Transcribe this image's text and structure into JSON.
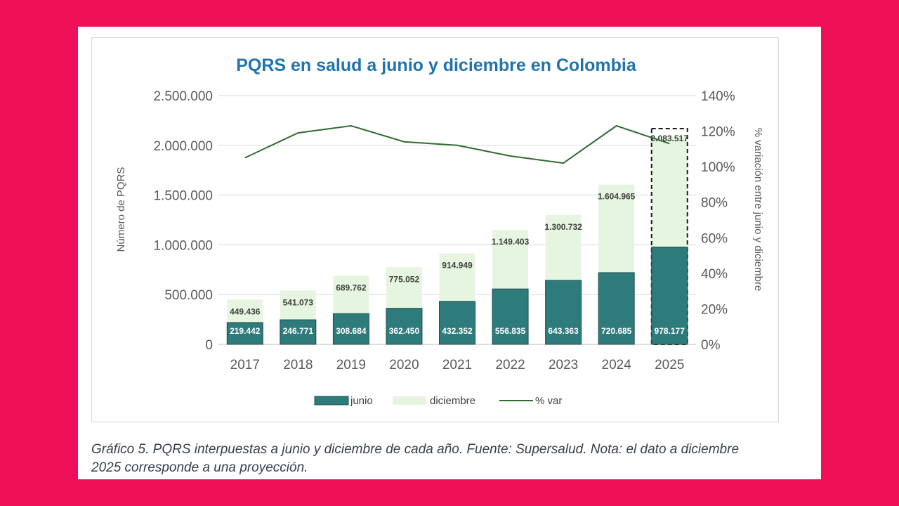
{
  "chart_data": {
    "type": "bar",
    "title": "PQRS en salud a junio y diciembre en Colombia",
    "ylabel": "Número de PQRS",
    "y2label": "% variación entre junio y diciembre",
    "categories": [
      "2017",
      "2018",
      "2019",
      "2020",
      "2021",
      "2022",
      "2023",
      "2024",
      "2025"
    ],
    "series": [
      {
        "name": "junio",
        "color": "#2e7b7c",
        "values": [
          219442,
          246771,
          308684,
          362450,
          432352,
          556835,
          643363,
          720685,
          978177
        ],
        "labels": [
          "219.442",
          "246.771",
          "308.684",
          "362.450",
          "432.352",
          "556.835",
          "643.363",
          "720.685",
          "978.177"
        ]
      },
      {
        "name": "diciembre",
        "color": "#e6f5df",
        "values": [
          449436,
          541073,
          689762,
          775052,
          914949,
          1149403,
          1300732,
          1604965,
          2083517
        ],
        "labels": [
          "449.436",
          "541.073",
          "689.762",
          "775.052",
          "914.949",
          "1.149.403",
          "1.300.732",
          "1.604.965",
          "2.083.517"
        ]
      },
      {
        "name": "% var",
        "color": "#2f6b2f",
        "axis": "right",
        "values": [
          105,
          119,
          123,
          114,
          112,
          106,
          102,
          123,
          113
        ]
      }
    ],
    "ylim": [
      0,
      2500000
    ],
    "yticks": [
      0,
      500000,
      1000000,
      1500000,
      2000000,
      2500000
    ],
    "ytick_labels": [
      "0",
      "500.000",
      "1.000.000",
      "1.500.000",
      "2.000.000",
      "2.500.000"
    ],
    "y2lim": [
      0,
      140
    ],
    "y2ticks": [
      0,
      20,
      40,
      60,
      80,
      100,
      120,
      140
    ],
    "y2tick_labels": [
      "0%",
      "20%",
      "40%",
      "60%",
      "80%",
      "100%",
      "120%",
      "140%"
    ],
    "grid": true,
    "legend": "bottom",
    "projection_highlight": "2025"
  },
  "caption": "Gráfico 5. PQRS interpuestas a junio y diciembre de cada año.  Fuente: Supersalud.  Nota: el dato a diciembre\n2025 corresponde a una proyección."
}
